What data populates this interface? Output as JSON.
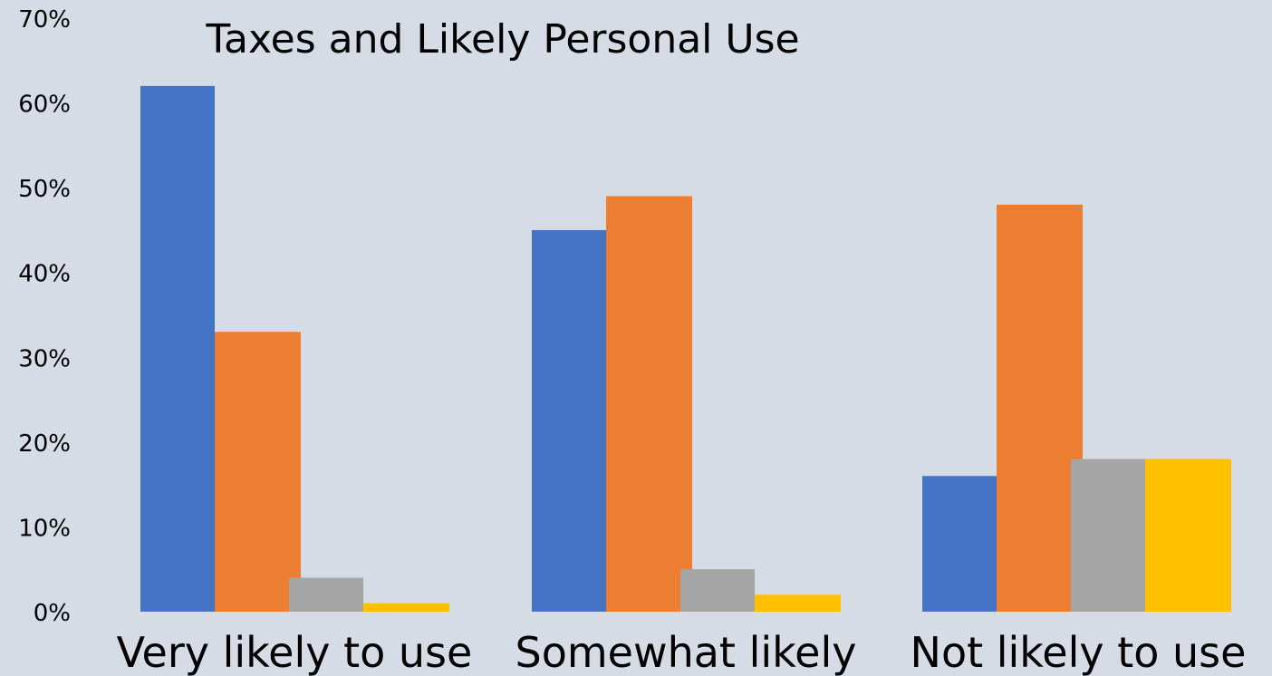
{
  "chart_data": {
    "type": "bar",
    "title": "Taxes and Likely Personal Use",
    "categories": [
      "Very likely to use",
      "Somewhat likely",
      "Not likely to use"
    ],
    "series": [
      {
        "color": "#4472c4",
        "values": [
          62,
          45,
          16
        ]
      },
      {
        "color": "#ed7d31",
        "values": [
          33,
          49,
          48
        ]
      },
      {
        "color": "#a5a5a5",
        "values": [
          4,
          5,
          18
        ]
      },
      {
        "color": "#ffc000",
        "values": [
          1,
          2,
          18
        ]
      }
    ],
    "ylim": [
      0,
      70
    ],
    "yticks": [
      "0%",
      "10%",
      "20%",
      "30%",
      "40%",
      "50%",
      "60%",
      "70%"
    ],
    "xlabel": "",
    "ylabel": "",
    "grid": false,
    "legend": "none"
  },
  "colors": {
    "background": "#d6dce5",
    "text": "#000000"
  }
}
